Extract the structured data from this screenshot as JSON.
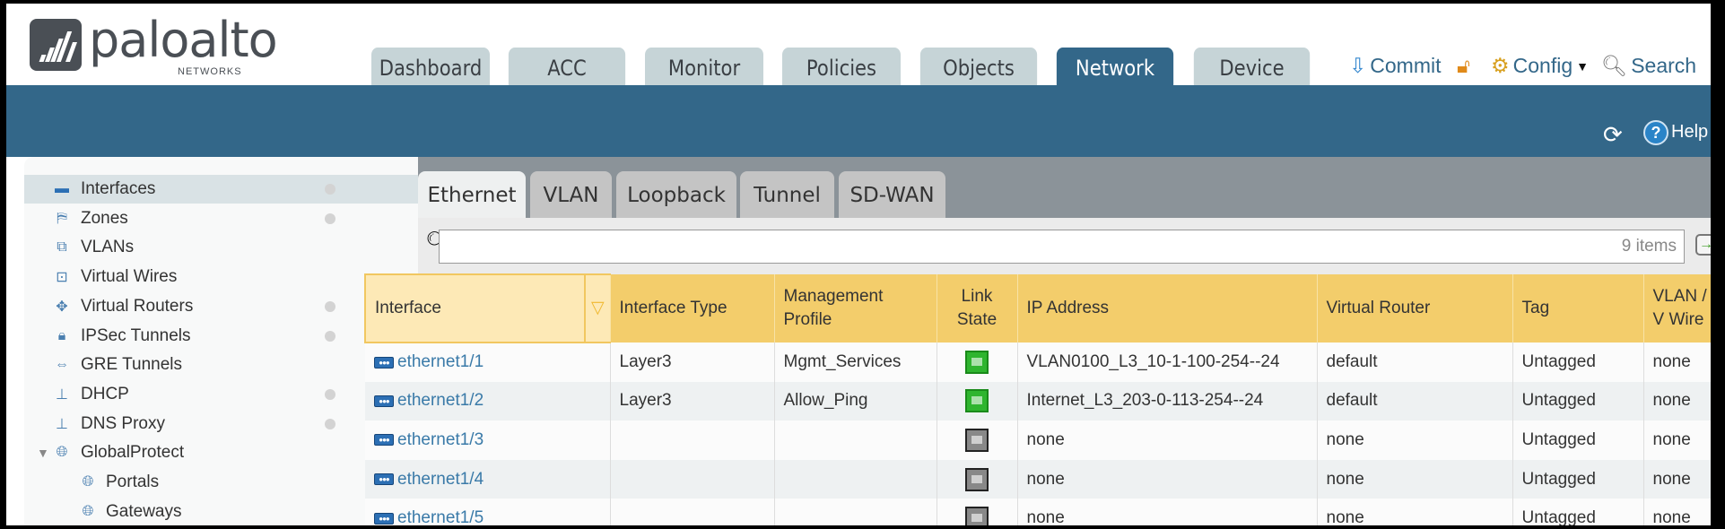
{
  "brand": {
    "name": "paloalto",
    "sub": "NETWORKS"
  },
  "top_tabs": [
    {
      "label": "Dashboard",
      "active": false
    },
    {
      "label": "ACC",
      "active": false
    },
    {
      "label": "Monitor",
      "active": false
    },
    {
      "label": "Policies",
      "active": false
    },
    {
      "label": "Objects",
      "active": false
    },
    {
      "label": "Network",
      "active": true
    },
    {
      "label": "Device",
      "active": false
    }
  ],
  "toolbar": {
    "commit": "Commit",
    "config": "Config",
    "search": "Search",
    "help": "Help"
  },
  "sidebar": {
    "items": [
      {
        "label": "Interfaces",
        "icon": "interfaces-icon",
        "dot": true,
        "selected": true
      },
      {
        "label": "Zones",
        "icon": "zones-icon",
        "dot": true
      },
      {
        "label": "VLANs",
        "icon": "vlans-icon",
        "dot": false
      },
      {
        "label": "Virtual Wires",
        "icon": "virtual-wires-icon",
        "dot": false
      },
      {
        "label": "Virtual Routers",
        "icon": "virtual-routers-icon",
        "dot": true
      },
      {
        "label": "IPSec Tunnels",
        "icon": "ipsec-tunnels-icon",
        "dot": true
      },
      {
        "label": "GRE Tunnels",
        "icon": "gre-tunnels-icon",
        "dot": false
      },
      {
        "label": "DHCP",
        "icon": "dhcp-icon",
        "dot": true
      },
      {
        "label": "DNS Proxy",
        "icon": "dns-proxy-icon",
        "dot": true
      },
      {
        "label": "GlobalProtect",
        "icon": "globalprotect-icon",
        "dot": false,
        "expanded": true
      },
      {
        "label": "Portals",
        "icon": "portals-icon",
        "dot": false,
        "child": true
      },
      {
        "label": "Gateways",
        "icon": "gateways-icon",
        "dot": false,
        "child": true
      }
    ]
  },
  "sub_tabs": [
    {
      "label": "Ethernet",
      "active": true
    },
    {
      "label": "VLAN"
    },
    {
      "label": "Loopback"
    },
    {
      "label": "Tunnel"
    },
    {
      "label": "SD-WAN"
    }
  ],
  "search": {
    "value": "",
    "count": "9 items"
  },
  "table": {
    "columns": [
      "Interface",
      "Interface Type",
      "Management Profile",
      "Link State",
      "IP Address",
      "Virtual Router",
      "Tag",
      "VLAN / Virtual Wire"
    ],
    "column_display": [
      "Interface",
      "Interface Type",
      "Management Profile",
      "Link State",
      "IP Address",
      "Virtual Router",
      "Tag",
      "VLAN / V Wire"
    ],
    "rows": [
      {
        "interface": "ethernet1/1",
        "type": "Layer3",
        "profile": "Mgmt_Services",
        "link": "up",
        "ip": "VLAN0100_L3_10-1-100-254--24",
        "vr": "default",
        "tag": "Untagged",
        "vlan": "none"
      },
      {
        "interface": "ethernet1/2",
        "type": "Layer3",
        "profile": "Allow_Ping",
        "link": "up",
        "ip": "Internet_L3_203-0-113-254--24",
        "vr": "default",
        "tag": "Untagged",
        "vlan": "none"
      },
      {
        "interface": "ethernet1/3",
        "type": "",
        "profile": "",
        "link": "down",
        "ip": "none",
        "vr": "none",
        "tag": "Untagged",
        "vlan": "none"
      },
      {
        "interface": "ethernet1/4",
        "type": "",
        "profile": "",
        "link": "down",
        "ip": "none",
        "vr": "none",
        "tag": "Untagged",
        "vlan": "none"
      },
      {
        "interface": "ethernet1/5",
        "type": "",
        "profile": "",
        "link": "down",
        "ip": "none",
        "vr": "none",
        "tag": "Untagged",
        "vlan": "none"
      }
    ]
  },
  "colors": {
    "band": "#336789",
    "header_row": "#f3cd6b",
    "link_text": "#3a7aa8",
    "link_up": "#2fb52f",
    "link_down": "#888888"
  }
}
